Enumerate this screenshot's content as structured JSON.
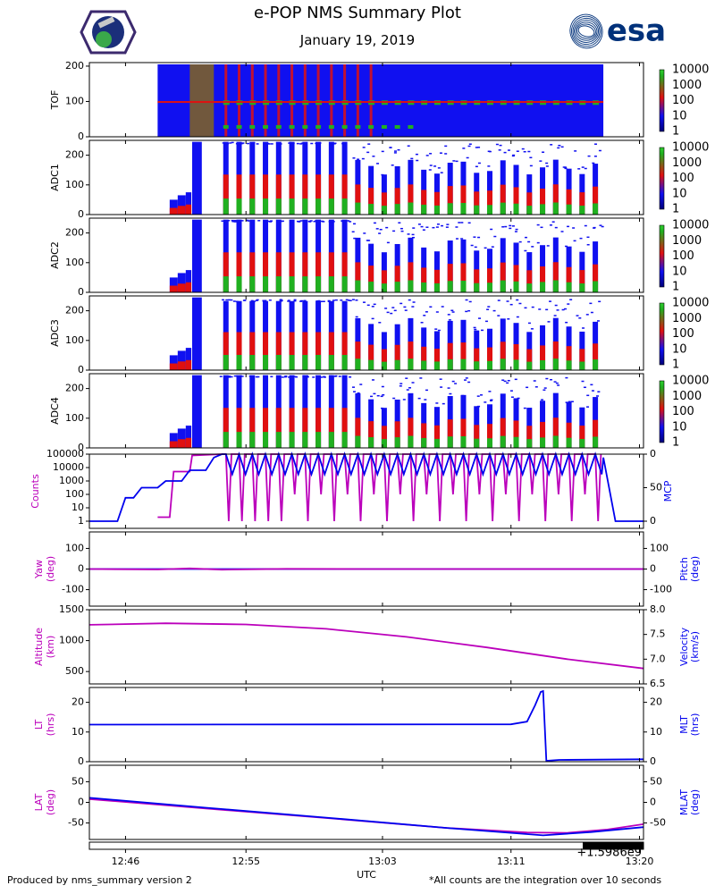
{
  "header": {
    "title": "e-POP NMS Summary Plot",
    "date": "January 19, 2019",
    "logo_right_text": "esa",
    "logo_left_name": "cassiope-mission-logo"
  },
  "footer": {
    "left": "Produced by nms_summary version 2",
    "right": "*All counts are the integration over 10 seconds"
  },
  "colors": {
    "magenta": "#bb00bb",
    "blue": "#0000ee",
    "spec_blue": "#1010f0",
    "spec_red": "#e01010",
    "spec_green": "#20b020",
    "esa_blue": "#00317a"
  },
  "chart_data": {
    "type": "multi-panel",
    "x_axis": {
      "label": "UTC",
      "ticks": [
        "12:46",
        "12:55",
        "13:03",
        "13:11",
        "13:20"
      ],
      "offset_label": "+1.5986e9",
      "range_min": [
        -4.5,
        64.5
      ],
      "tick_min": [
        0,
        15,
        32,
        48,
        64
      ]
    },
    "spectrograms": [
      {
        "label": "TOF",
        "y_ticks": [
          0,
          100,
          200
        ],
        "ylim": [
          0,
          210
        ]
      },
      {
        "label": "ADC1",
        "y_ticks": [
          0,
          100,
          200
        ],
        "ylim": [
          0,
          250
        ]
      },
      {
        "label": "ADC2",
        "y_ticks": [
          0,
          100,
          200
        ],
        "ylim": [
          0,
          250
        ]
      },
      {
        "label": "ADC3",
        "y_ticks": [
          0,
          100,
          200
        ],
        "ylim": [
          0,
          250
        ]
      },
      {
        "label": "ADC4",
        "y_ticks": [
          0,
          100,
          200
        ],
        "ylim": [
          0,
          250
        ]
      }
    ],
    "colorbar": {
      "ticks": [
        "10000",
        "1000",
        "100",
        "10",
        "1"
      ],
      "scale": "log",
      "range": [
        1,
        10000
      ]
    },
    "counts_panel": {
      "left_label": "Counts",
      "left_ticks": [
        "100000",
        "10000",
        "1000",
        "100",
        "10",
        "1"
      ],
      "left_range_log10": [
        0,
        5
      ],
      "right_label": "MCP",
      "right_ticks": [
        "0",
        "50",
        "0"
      ],
      "right_range": [
        0,
        100
      ],
      "mcp_series": [
        [
          -4.5,
          0
        ],
        [
          -1,
          0
        ],
        [
          0,
          35
        ],
        [
          1,
          35
        ],
        [
          2,
          50
        ],
        [
          4,
          50
        ],
        [
          5,
          60
        ],
        [
          7,
          60
        ],
        [
          8,
          76
        ],
        [
          10,
          76
        ],
        [
          11,
          95
        ],
        [
          12,
          100
        ]
      ],
      "counts_steps_log10": [
        [
          4,
          0.3
        ],
        [
          5.5,
          0.3
        ],
        [
          6,
          3.7
        ],
        [
          8,
          3.7
        ],
        [
          8.3,
          4.9
        ]
      ],
      "pulse_start_min": 12.5,
      "pulse_end_min": 58.5,
      "pulse_count": 29,
      "counts_pulse_high_log10": 5,
      "counts_pulse_low_log10": 0,
      "mcp_pulse_high": 100,
      "mcp_pulse_low": 70,
      "mcp_end": [
        [
          59.5,
          95
        ],
        [
          61,
          0
        ],
        [
          64.5,
          0
        ]
      ]
    },
    "attitude_panel": {
      "left_label": "Yaw",
      "left_units": "(deg)",
      "left_ticks": [
        100,
        0,
        -100
      ],
      "right_label": "Pitch",
      "right_units": "(deg)",
      "right_ticks": [
        100,
        0,
        -100
      ],
      "ylim": [
        -180,
        180
      ],
      "yaw_series": [
        [
          -4.5,
          0
        ],
        [
          4,
          -2
        ],
        [
          8,
          3
        ],
        [
          12,
          -3
        ],
        [
          20,
          1
        ],
        [
          30,
          0
        ],
        [
          45,
          0
        ],
        [
          64.5,
          0
        ]
      ],
      "pitch_series": [
        [
          -4.5,
          0
        ],
        [
          64.5,
          0
        ]
      ]
    },
    "orbit_panel": {
      "left_label": "Altitude",
      "left_units": "(km)",
      "left_ticks": [
        1500,
        1000,
        500
      ],
      "left_range": [
        300,
        1500
      ],
      "right_label": "Velocity",
      "right_units": "(km/s)",
      "right_ticks": [
        "8.0",
        "7.5",
        "7.0",
        "6.5"
      ],
      "right_range": [
        6.5,
        8.0
      ],
      "altitude_series": [
        [
          -4.5,
          1255
        ],
        [
          5,
          1280
        ],
        [
          15,
          1262
        ],
        [
          25,
          1190
        ],
        [
          35,
          1060
        ],
        [
          45,
          890
        ],
        [
          55,
          700
        ],
        [
          64.5,
          550
        ]
      ]
    },
    "time_panel": {
      "left_label": "LT",
      "left_units": "(hrs)",
      "left_ticks": [
        20,
        10,
        0
      ],
      "right_label": "MLT",
      "right_units": "(hrs)",
      "right_ticks": [
        20,
        10,
        0
      ],
      "ylim": [
        0,
        25
      ],
      "lt_series": [
        [
          -4.5,
          12.5
        ],
        [
          48,
          12.6
        ],
        [
          50,
          13.5
        ],
        [
          51,
          19
        ],
        [
          51.7,
          23.5
        ],
        [
          52,
          23.8
        ],
        [
          52.4,
          0.3
        ],
        [
          54,
          0.6
        ],
        [
          64.5,
          0.8
        ]
      ]
    },
    "lat_panel": {
      "left_label": "LAT",
      "left_units": "(deg)",
      "left_ticks": [
        50,
        0,
        -50
      ],
      "right_label": "MLAT",
      "right_units": "(deg)",
      "right_ticks": [
        50,
        0,
        -50
      ],
      "ylim": [
        -90,
        90
      ],
      "lat_series": [
        [
          -4.5,
          8
        ],
        [
          10,
          -15
        ],
        [
          25,
          -38
        ],
        [
          40,
          -62
        ],
        [
          50,
          -73
        ],
        [
          55,
          -74
        ],
        [
          60,
          -66
        ],
        [
          64.5,
          -53
        ]
      ],
      "mlat_series": [
        [
          -4.5,
          11
        ],
        [
          10,
          -13
        ],
        [
          25,
          -37
        ],
        [
          40,
          -62
        ],
        [
          52,
          -80
        ],
        [
          58,
          -72
        ],
        [
          64.5,
          -60
        ]
      ]
    }
  }
}
